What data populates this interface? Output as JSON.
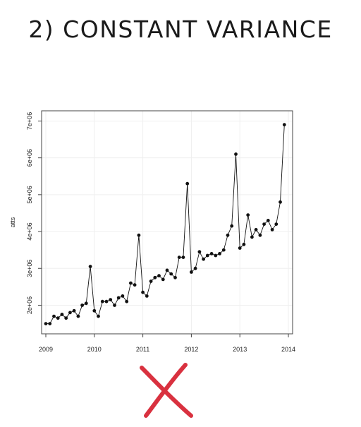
{
  "heading": "2) CONSTANT VARIANCE",
  "chart_data": {
    "type": "line",
    "ylabel": "atts",
    "xlim": [
      2009,
      2014
    ],
    "ylim": [
      1300000,
      7200000
    ],
    "x_ticks": [
      2009,
      2010,
      2011,
      2012,
      2013,
      2014
    ],
    "x_tick_labels": [
      "2009",
      "2010",
      "2011",
      "2012",
      "2013",
      "2014"
    ],
    "y_ticks": [
      2000000,
      3000000,
      4000000,
      5000000,
      6000000,
      7000000
    ],
    "y_tick_labels": [
      "2e+06",
      "3e+06",
      "4e+06",
      "5e+06",
      "6e+06",
      "7e+06"
    ],
    "grid": true,
    "x_start": 2009,
    "step": 0.0833333,
    "values": [
      1500000,
      1500000,
      1700000,
      1650000,
      1750000,
      1650000,
      1800000,
      1850000,
      1700000,
      2000000,
      2050000,
      3050000,
      1850000,
      1700000,
      2100000,
      2100000,
      2150000,
      2000000,
      2200000,
      2250000,
      2100000,
      2600000,
      2550000,
      3900000,
      2350000,
      2250000,
      2650000,
      2750000,
      2800000,
      2700000,
      2950000,
      2850000,
      2750000,
      3300000,
      3300000,
      5300000,
      2900000,
      3000000,
      3450000,
      3250000,
      3350000,
      3400000,
      3350000,
      3400000,
      3500000,
      3900000,
      4150000,
      6100000,
      3550000,
      3650000,
      4450000,
      3850000,
      4050000,
      3900000,
      4200000,
      4300000,
      4050000,
      4200000,
      4800000,
      6900000
    ]
  },
  "annotation": {
    "mark": "red-x-icon",
    "color": "#d9313f"
  }
}
